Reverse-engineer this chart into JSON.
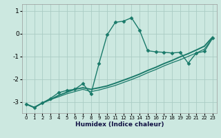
{
  "xlabel": "Humidex (Indice chaleur)",
  "background_color": "#cce8e0",
  "grid_color": "#aaccc4",
  "line_color": "#1a7a6a",
  "x_values": [
    0,
    1,
    2,
    3,
    4,
    5,
    6,
    7,
    8,
    9,
    10,
    11,
    12,
    13,
    14,
    15,
    16,
    17,
    18,
    19,
    20,
    21,
    22,
    23
  ],
  "curve1_y": [
    -3.1,
    -3.25,
    -3.05,
    -2.85,
    -2.6,
    -2.5,
    -2.45,
    -2.2,
    -2.65,
    -1.3,
    -0.05,
    0.5,
    0.55,
    0.7,
    0.15,
    -0.75,
    -0.8,
    -0.82,
    -0.85,
    -0.82,
    -1.3,
    -0.85,
    -0.78,
    -0.2
  ],
  "curve2_y": [
    -3.1,
    -3.25,
    -3.05,
    -2.9,
    -2.72,
    -2.58,
    -2.45,
    -2.38,
    -2.45,
    -2.38,
    -2.3,
    -2.18,
    -2.05,
    -1.92,
    -1.78,
    -1.62,
    -1.48,
    -1.32,
    -1.18,
    -1.02,
    -0.88,
    -0.72,
    -0.55,
    -0.15
  ],
  "curve3_y": [
    -3.1,
    -3.25,
    -3.05,
    -2.9,
    -2.78,
    -2.65,
    -2.55,
    -2.45,
    -2.55,
    -2.48,
    -2.38,
    -2.28,
    -2.15,
    -2.02,
    -1.88,
    -1.72,
    -1.58,
    -1.42,
    -1.28,
    -1.15,
    -1.0,
    -0.85,
    -0.68,
    -0.2
  ],
  "ylim": [
    -3.5,
    1.3
  ],
  "xlim": [
    -0.5,
    23.5
  ],
  "yticks": [
    1,
    0,
    -1,
    -2,
    -3
  ],
  "xticks": [
    0,
    1,
    2,
    3,
    4,
    5,
    6,
    7,
    8,
    9,
    10,
    11,
    12,
    13,
    14,
    15,
    16,
    17,
    18,
    19,
    20,
    21,
    22,
    23
  ],
  "markersize": 2.5,
  "linewidth": 1.0
}
